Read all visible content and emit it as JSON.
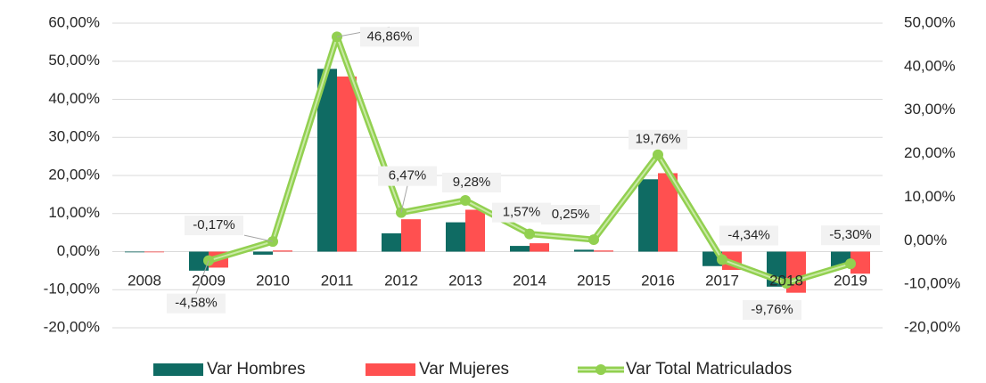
{
  "chart_data": {
    "type": "bar-line",
    "categories": [
      "2008",
      "2009",
      "2010",
      "2011",
      "2012",
      "2013",
      "2014",
      "2015",
      "2016",
      "2017",
      "2018",
      "2019"
    ],
    "series": [
      {
        "name": "Var Hombres",
        "color": "#0f6b63",
        "values": [
          0,
          -5.0,
          -0.8,
          48.0,
          4.8,
          7.7,
          1.5,
          0.5,
          19.0,
          -3.8,
          -9.2,
          -4.0
        ]
      },
      {
        "name": "Var Mujeres",
        "color": "#ff5050",
        "values": [
          0,
          -4.2,
          0.3,
          46.0,
          8.5,
          11.0,
          2.2,
          0.3,
          20.6,
          -4.8,
          -10.8,
          -5.8
        ]
      },
      {
        "name": "Var Total Matriculados",
        "color": "#92d050",
        "axis": "y2",
        "type": "line",
        "values": [
          null,
          -4.58,
          -0.17,
          46.86,
          6.47,
          9.28,
          1.57,
          0.25,
          19.76,
          -4.34,
          -9.76,
          -5.3
        ],
        "value_labels": [
          null,
          "-4,58%",
          "-0,17%",
          "46,86%",
          "6,47%",
          "9,28%",
          "1,57%",
          "0,25%",
          "19,76%",
          "-4,34%",
          "-9,76%",
          "-5,30%"
        ]
      }
    ],
    "ylim": [
      -20,
      60
    ],
    "yticks": [
      {
        "value": -20,
        "label": "-20,00%"
      },
      {
        "value": -10,
        "label": "-10,00%"
      },
      {
        "value": 0,
        "label": "0,00%"
      },
      {
        "value": 10,
        "label": "10,00%"
      },
      {
        "value": 20,
        "label": "20,00%"
      },
      {
        "value": 30,
        "label": "30,00%"
      },
      {
        "value": 40,
        "label": "40,00%"
      },
      {
        "value": 50,
        "label": "50,00%"
      },
      {
        "value": 60,
        "label": "60,00%"
      }
    ],
    "y2lim": [
      -20,
      50
    ],
    "y2ticks": [
      {
        "value": -20,
        "label": "-20,00%"
      },
      {
        "value": -10,
        "label": "-10,00%"
      },
      {
        "value": 0,
        "label": "0,00%"
      },
      {
        "value": 10,
        "label": "10,00%"
      },
      {
        "value": 20,
        "label": "20,00%"
      },
      {
        "value": 30,
        "label": "30,00%"
      },
      {
        "value": 40,
        "label": "40,00%"
      },
      {
        "value": 50,
        "label": "50,00%"
      }
    ],
    "grid": true,
    "legend": "bottom"
  }
}
